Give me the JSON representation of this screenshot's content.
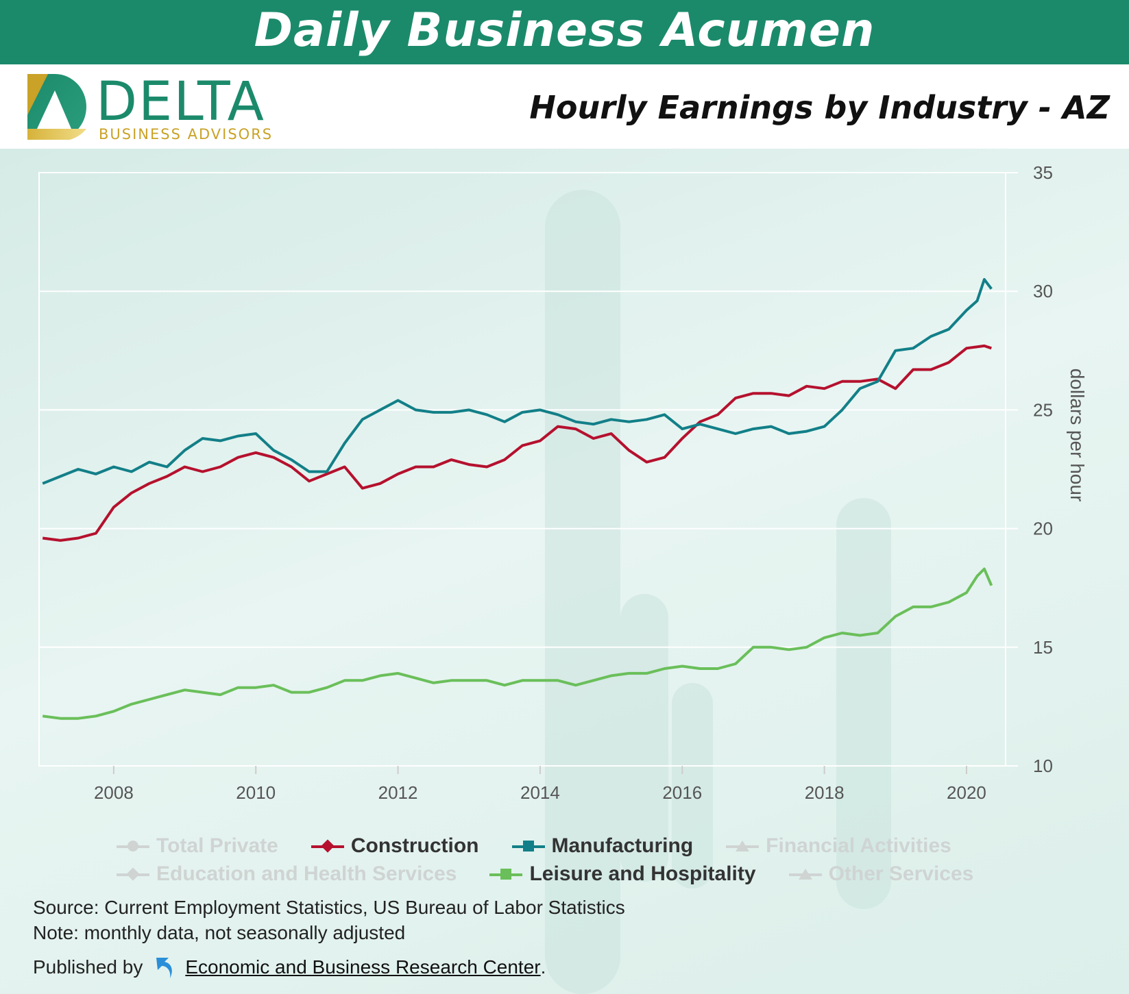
{
  "banner": {
    "title": "Daily Business Acumen"
  },
  "logo": {
    "word": "DELTA",
    "sub": "BUSINESS ADVISORS"
  },
  "subtitle": "Hourly Earnings by Industry - AZ",
  "colors": {
    "construction": "#b5112e",
    "manufacturing": "#127f88",
    "leisure": "#6abf5a",
    "banner": "#1b8a6b",
    "gold": "#c9a227",
    "inactive": "#cfd4d3"
  },
  "chart_data": {
    "type": "line",
    "title": "Hourly Earnings by Industry - AZ",
    "ylabel": "dollars per hour",
    "ylim": [
      10,
      35
    ],
    "yticks": [
      10,
      15,
      20,
      25,
      30,
      35
    ],
    "xlim": [
      2006.95,
      2020.55
    ],
    "xticks": [
      "2008",
      "2010",
      "2012",
      "2014",
      "2016",
      "2018",
      "2020"
    ],
    "series": [
      {
        "name": "Construction",
        "color": "#b5112e",
        "x": [
          2007.0,
          2007.25,
          2007.5,
          2007.75,
          2008.0,
          2008.25,
          2008.5,
          2008.75,
          2009.0,
          2009.25,
          2009.5,
          2009.75,
          2010.0,
          2010.25,
          2010.5,
          2010.75,
          2011.0,
          2011.25,
          2011.5,
          2011.75,
          2012.0,
          2012.25,
          2012.5,
          2012.75,
          2013.0,
          2013.25,
          2013.5,
          2013.75,
          2014.0,
          2014.25,
          2014.5,
          2014.75,
          2015.0,
          2015.25,
          2015.5,
          2015.75,
          2016.0,
          2016.25,
          2016.5,
          2016.75,
          2017.0,
          2017.25,
          2017.5,
          2017.75,
          2018.0,
          2018.25,
          2018.5,
          2018.75,
          2019.0,
          2019.25,
          2019.5,
          2019.75,
          2020.0,
          2020.25,
          2020.35
        ],
        "y": [
          19.6,
          19.5,
          19.6,
          19.8,
          20.9,
          21.5,
          21.9,
          22.2,
          22.6,
          22.4,
          22.6,
          23.0,
          23.2,
          23.0,
          22.6,
          22.0,
          22.3,
          22.6,
          21.7,
          21.9,
          22.3,
          22.6,
          22.6,
          22.9,
          22.7,
          22.6,
          22.9,
          23.5,
          23.7,
          24.3,
          24.2,
          23.8,
          24.0,
          23.3,
          22.8,
          23.0,
          23.8,
          24.5,
          24.8,
          25.5,
          25.7,
          25.7,
          25.6,
          26.0,
          25.9,
          26.2,
          26.2,
          26.3,
          25.9,
          26.7,
          26.7,
          27.0,
          27.6,
          27.7,
          27.6
        ]
      },
      {
        "name": "Manufacturing",
        "color": "#127f88",
        "x": [
          2007.0,
          2007.25,
          2007.5,
          2007.75,
          2008.0,
          2008.25,
          2008.5,
          2008.75,
          2009.0,
          2009.25,
          2009.5,
          2009.75,
          2010.0,
          2010.25,
          2010.5,
          2010.75,
          2011.0,
          2011.25,
          2011.5,
          2011.75,
          2012.0,
          2012.25,
          2012.5,
          2012.75,
          2013.0,
          2013.25,
          2013.5,
          2013.75,
          2014.0,
          2014.25,
          2014.5,
          2014.75,
          2015.0,
          2015.25,
          2015.5,
          2015.75,
          2016.0,
          2016.25,
          2016.5,
          2016.75,
          2017.0,
          2017.25,
          2017.5,
          2017.75,
          2018.0,
          2018.25,
          2018.5,
          2018.75,
          2019.0,
          2019.25,
          2019.5,
          2019.75,
          2020.0,
          2020.15,
          2020.25,
          2020.35
        ],
        "y": [
          21.9,
          22.2,
          22.5,
          22.3,
          22.6,
          22.4,
          22.8,
          22.6,
          23.3,
          23.8,
          23.7,
          23.9,
          24.0,
          23.3,
          22.9,
          22.4,
          22.4,
          23.6,
          24.6,
          25.0,
          25.4,
          25.0,
          24.9,
          24.9,
          25.0,
          24.8,
          24.5,
          24.9,
          25.0,
          24.8,
          24.5,
          24.4,
          24.6,
          24.5,
          24.6,
          24.8,
          24.2,
          24.4,
          24.2,
          24.0,
          24.2,
          24.3,
          24.0,
          24.1,
          24.3,
          25.0,
          25.9,
          26.2,
          27.5,
          27.6,
          28.1,
          28.4,
          29.2,
          29.6,
          30.5,
          30.1
        ]
      },
      {
        "name": "Leisure and Hospitality",
        "color": "#6abf5a",
        "x": [
          2007.0,
          2007.25,
          2007.5,
          2007.75,
          2008.0,
          2008.25,
          2008.5,
          2008.75,
          2009.0,
          2009.25,
          2009.5,
          2009.75,
          2010.0,
          2010.25,
          2010.5,
          2010.75,
          2011.0,
          2011.25,
          2011.5,
          2011.75,
          2012.0,
          2012.25,
          2012.5,
          2012.75,
          2013.0,
          2013.25,
          2013.5,
          2013.75,
          2014.0,
          2014.25,
          2014.5,
          2014.75,
          2015.0,
          2015.25,
          2015.5,
          2015.75,
          2016.0,
          2016.25,
          2016.5,
          2016.75,
          2017.0,
          2017.25,
          2017.5,
          2017.75,
          2018.0,
          2018.25,
          2018.5,
          2018.75,
          2019.0,
          2019.25,
          2019.5,
          2019.75,
          2020.0,
          2020.15,
          2020.25,
          2020.35
        ],
        "y": [
          12.1,
          12.0,
          12.0,
          12.1,
          12.3,
          12.6,
          12.8,
          13.0,
          13.2,
          13.1,
          13.0,
          13.3,
          13.3,
          13.4,
          13.1,
          13.1,
          13.3,
          13.6,
          13.6,
          13.8,
          13.9,
          13.7,
          13.5,
          13.6,
          13.6,
          13.6,
          13.4,
          13.6,
          13.6,
          13.6,
          13.4,
          13.6,
          13.8,
          13.9,
          13.9,
          14.1,
          14.2,
          14.1,
          14.1,
          14.3,
          15.0,
          15.0,
          14.9,
          15.0,
          15.4,
          15.6,
          15.5,
          15.6,
          16.3,
          16.7,
          16.7,
          16.9,
          17.3,
          18.0,
          18.3,
          17.6
        ]
      }
    ]
  },
  "legend": {
    "row1": [
      "Total Private",
      "Construction",
      "Manufacturing",
      "Financial Activities"
    ],
    "row2": [
      "Education and Health Services",
      "Leisure and Hospitality",
      "Other Services"
    ]
  },
  "notes": {
    "source": "Source: Current Employment Statistics, US Bureau of Labor Statistics",
    "note": "Note: monthly data, not seasonally adjusted",
    "published_by": "Published by",
    "publisher": "Economic and Business Research Center",
    "period": "."
  }
}
